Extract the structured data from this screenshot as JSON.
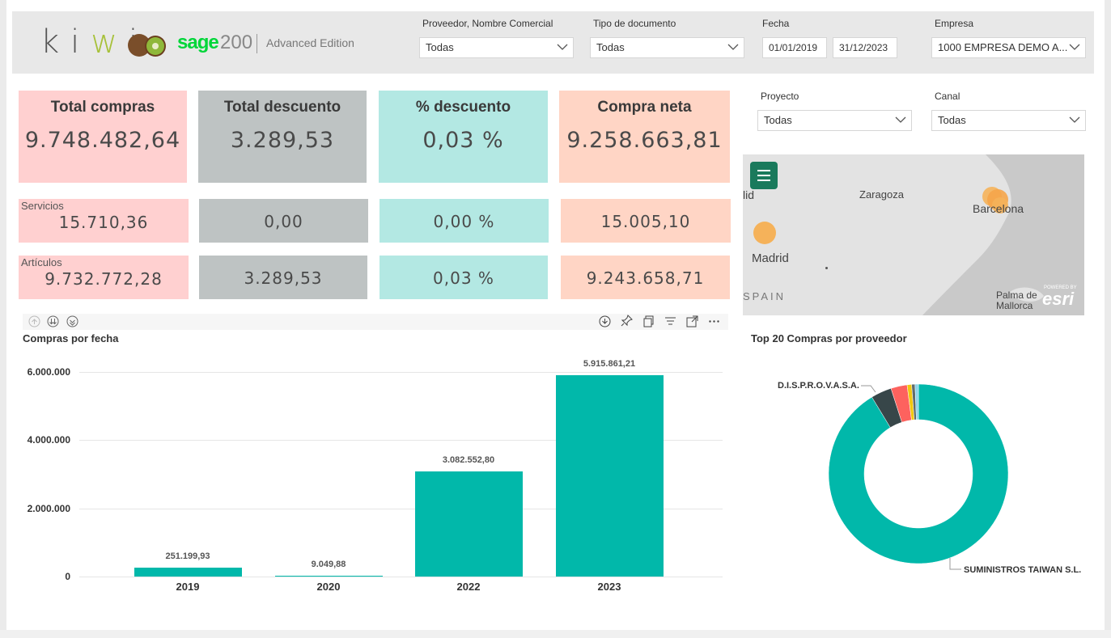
{
  "header": {
    "logo_text_k": "k",
    "logo_text_i1": "i",
    "logo_text_w": "w",
    "logo_text_i2": "i",
    "brand": "sage",
    "brand_version": "200",
    "edition": "Advanced Edition"
  },
  "filters": {
    "proveedor": {
      "label": "Proveedor, Nombre Comercial",
      "value": "Todas"
    },
    "tipo_documento": {
      "label": "Tipo de documento",
      "value": "Todas"
    },
    "fecha": {
      "label": "Fecha",
      "from": "01/01/2019",
      "to": "31/12/2023"
    },
    "empresa": {
      "label": "Empresa",
      "value": "1000 EMPRESA DEMO A..."
    },
    "proyecto": {
      "label": "Proyecto",
      "value": "Todas"
    },
    "canal": {
      "label": "Canal",
      "value": "Todas"
    }
  },
  "kpis": {
    "total_compras": {
      "title": "Total compras",
      "value": "9.748.482,64"
    },
    "total_descuento": {
      "title": "Total descuento",
      "value": "3.289,53"
    },
    "pct_descuento": {
      "title": "% descuento",
      "value": "0,03 %"
    },
    "compra_neta": {
      "title": "Compra neta",
      "value": "9.258.663,81"
    }
  },
  "servicios": {
    "label": "Servicios",
    "total": "15.710,36",
    "descuento": "0,00",
    "pct": "0,00 %",
    "neta": "15.005,10"
  },
  "articulos": {
    "label": "Artículos",
    "total": "9.732.772,28",
    "descuento": "3.289,53",
    "pct": "0,03 %",
    "neta": "9.243.658,71"
  },
  "map": {
    "labels": [
      "lid",
      "Zaragoza",
      "Barcelona",
      "Madrid",
      "SPAIN",
      "Palma de",
      "Mallorca"
    ],
    "attribution": "esri",
    "powered": "POWERED BY",
    "bubble_color": "#f5b25a",
    "menu_color": "#1a7a5c"
  },
  "charts": {
    "compras_title": "Compras por fecha",
    "proveedor_title": "Top 20 Compras por proveedor"
  },
  "chart_data": [
    {
      "type": "bar",
      "title": "Compras por fecha",
      "categories": [
        "2019",
        "2020",
        "2022",
        "2023"
      ],
      "values": [
        251199.93,
        9049.88,
        3082552.8,
        5915861.21
      ],
      "data_labels": [
        "251.199,93",
        "9.049,88",
        "3.082.552,80",
        "5.915.861,21"
      ],
      "y_ticks": [
        "0",
        "2.000.000",
        "4.000.000",
        "6.000.000"
      ],
      "ylim": [
        0,
        6000000
      ],
      "color": "#01b8aa"
    },
    {
      "type": "pie",
      "title": "Top 20 Compras por proveedor",
      "labels": [
        "SUMINISTROS TAIWAN S.L.",
        "D.I.S.P.R.O.V.A.S.A.",
        "",
        "",
        "",
        ""
      ],
      "values": [
        90.6,
        3.7,
        2.9,
        0.8,
        0.6,
        0.6
      ],
      "colors": [
        "#01b8aa",
        "#374649",
        "#fd625e",
        "#f2c80f",
        "#5f6b6d",
        "#8ad4eb"
      ],
      "annotations": [
        "D.I.S.P.R.O.V.A.S.A.",
        "SUMINISTROS TAIWAN S.L."
      ]
    }
  ]
}
